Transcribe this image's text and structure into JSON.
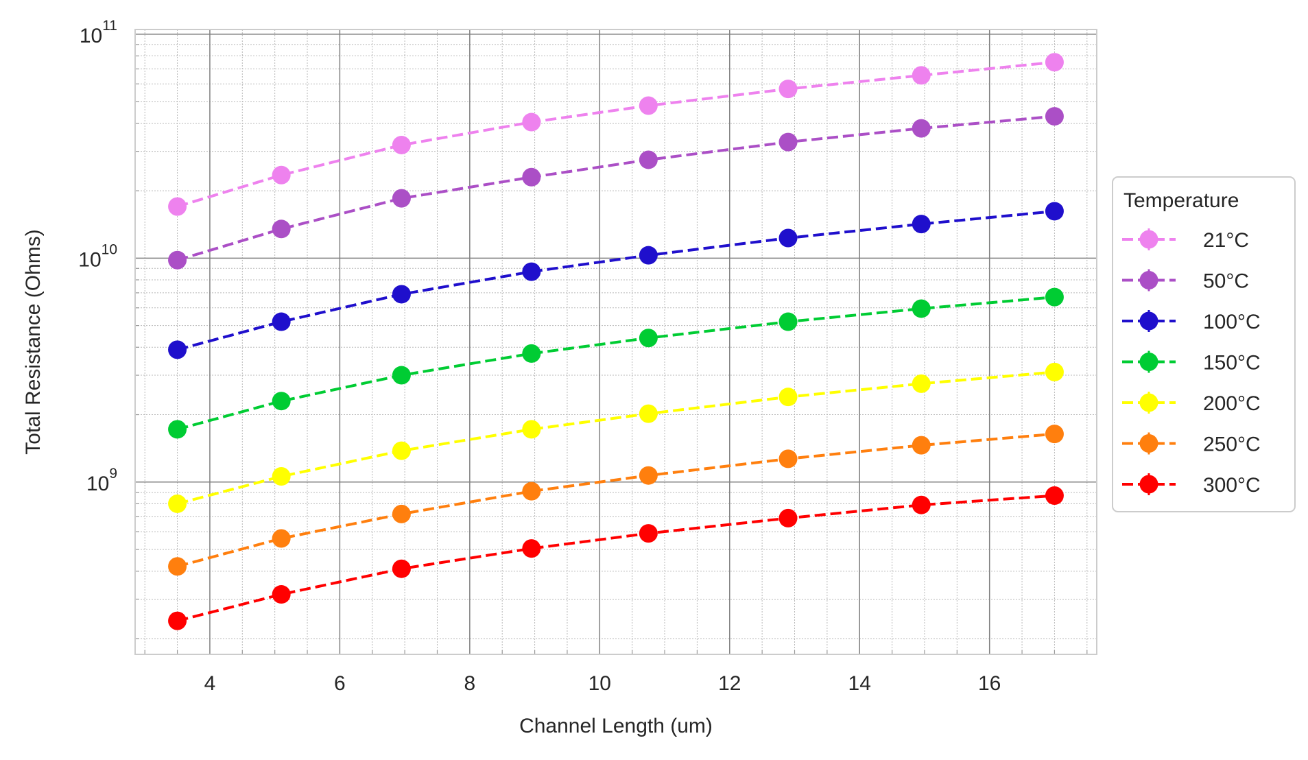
{
  "chart_data": {
    "type": "line",
    "title": "",
    "xlabel": "Channel Length (um)",
    "ylabel": "Total Resistance (Ohms)",
    "yscale": "log",
    "xlim": [
      2.85,
      17.65
    ],
    "ylim": [
      170000000,
      105000000000
    ],
    "x_ticks": [
      4,
      6,
      8,
      10,
      12,
      14,
      16
    ],
    "y_ticks": [
      {
        "value": 1000000000,
        "base": "10",
        "exp": "9"
      },
      {
        "value": 10000000000,
        "base": "10",
        "exp": "10"
      },
      {
        "value": 100000000000,
        "base": "10",
        "exp": "11"
      }
    ],
    "grid": true,
    "minor_grid": true,
    "legend": {
      "title": "Temperature",
      "placement": "outside-right"
    },
    "x": [
      3.5,
      5.1,
      6.95,
      8.95,
      10.75,
      12.9,
      14.95,
      17.0
    ],
    "series": [
      {
        "name": "21°C",
        "color": "#ee82ee",
        "values": [
          17000000000,
          23500000000,
          32000000000,
          40500000000,
          48000000000,
          57000000000,
          65500000000,
          75000000000
        ]
      },
      {
        "name": "50°C",
        "color": "#ab4fc6",
        "values": [
          9800000000,
          13500000000,
          18500000000,
          23000000000,
          27500000000,
          33000000000,
          38000000000,
          43000000000
        ]
      },
      {
        "name": "100°C",
        "color": "#1f0fcc",
        "values": [
          3900000000,
          5200000000,
          6900000000,
          8700000000,
          10300000000,
          12300000000,
          14200000000,
          16200000000
        ]
      },
      {
        "name": "150°C",
        "color": "#00cc33",
        "values": [
          1720000000,
          2300000000,
          3000000000,
          3750000000,
          4400000000,
          5200000000,
          5950000000,
          6700000000
        ]
      },
      {
        "name": "200°C",
        "color": "#ffff00",
        "values": [
          800000000,
          1060000000,
          1380000000,
          1720000000,
          2020000000,
          2400000000,
          2750000000,
          3100000000
        ]
      },
      {
        "name": "250°C",
        "color": "#ff7f0e",
        "values": [
          420000000,
          560000000,
          720000000,
          910000000,
          1070000000,
          1270000000,
          1460000000,
          1640000000
        ]
      },
      {
        "name": "300°C",
        "color": "#ff0000",
        "values": [
          240000000,
          315000000,
          410000000,
          505000000,
          590000000,
          690000000,
          790000000,
          870000000
        ]
      }
    ]
  }
}
